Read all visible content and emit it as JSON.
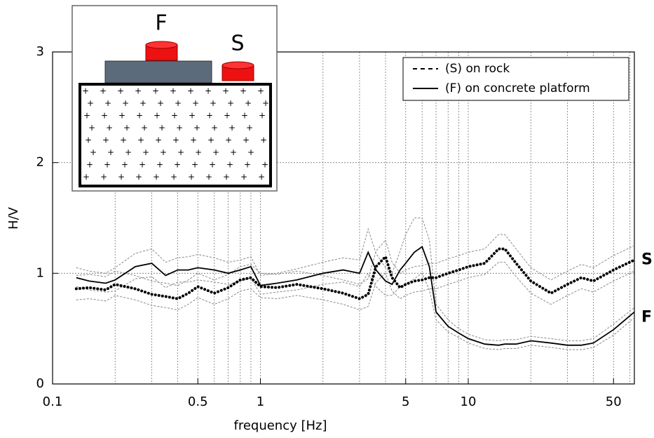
{
  "chart_data": {
    "type": "line",
    "xlabel": "frequency [Hz]",
    "ylabel": "H/V",
    "xscale": "log",
    "xlim": [
      0.1,
      63
    ],
    "ylim": [
      0,
      3
    ],
    "xticks": [
      0.1,
      0.5,
      1,
      5,
      10,
      50
    ],
    "xminor": [
      0.2,
      0.3,
      0.4,
      0.6,
      0.7,
      0.8,
      0.9,
      2,
      3,
      4,
      6,
      7,
      8,
      9,
      20,
      30,
      40,
      60
    ],
    "yticks": [
      0,
      1,
      2,
      3
    ],
    "grid": true,
    "legend": "upper right",
    "x": [
      0.13,
      0.15,
      0.18,
      0.2,
      0.25,
      0.3,
      0.35,
      0.4,
      0.45,
      0.5,
      0.6,
      0.7,
      0.8,
      0.9,
      1,
      1.2,
      1.5,
      2,
      2.5,
      3,
      3.3,
      3.6,
      4,
      4.3,
      4.7,
      5,
      5.5,
      6,
      6.5,
      7,
      8,
      9,
      10,
      12,
      14,
      15,
      17,
      20,
      25,
      30,
      35,
      40,
      50,
      63
    ],
    "series": [
      {
        "name": "(S) on rock",
        "label": "S",
        "style": "dotted",
        "color": "#000000",
        "band_color": "#888888",
        "values": [
          0.86,
          0.87,
          0.85,
          0.9,
          0.86,
          0.81,
          0.79,
          0.77,
          0.82,
          0.88,
          0.82,
          0.87,
          0.94,
          0.96,
          0.88,
          0.87,
          0.9,
          0.86,
          0.82,
          0.77,
          0.81,
          1.06,
          1.15,
          0.96,
          0.87,
          0.9,
          0.93,
          0.94,
          0.96,
          0.96,
          1.0,
          1.03,
          1.06,
          1.09,
          1.22,
          1.22,
          1.09,
          0.93,
          0.82,
          0.9,
          0.96,
          0.93,
          1.03,
          1.12
        ],
        "upper": [
          0.98,
          0.99,
          0.97,
          1.02,
          0.98,
          0.93,
          0.91,
          0.89,
          0.94,
          1.0,
          0.94,
          0.99,
          1.06,
          1.08,
          1.0,
          0.99,
          1.02,
          0.98,
          0.94,
          0.9,
          0.95,
          1.2,
          1.3,
          1.1,
          1.0,
          1.03,
          1.06,
          1.07,
          1.09,
          1.09,
          1.13,
          1.16,
          1.19,
          1.22,
          1.35,
          1.35,
          1.22,
          1.05,
          0.94,
          1.02,
          1.08,
          1.05,
          1.16,
          1.25
        ],
        "lower": [
          0.76,
          0.77,
          0.75,
          0.8,
          0.76,
          0.71,
          0.69,
          0.67,
          0.72,
          0.78,
          0.72,
          0.77,
          0.84,
          0.86,
          0.78,
          0.77,
          0.8,
          0.76,
          0.72,
          0.67,
          0.7,
          0.92,
          1.0,
          0.84,
          0.77,
          0.8,
          0.83,
          0.84,
          0.86,
          0.86,
          0.9,
          0.93,
          0.96,
          0.99,
          1.1,
          1.1,
          0.97,
          0.82,
          0.72,
          0.8,
          0.86,
          0.83,
          0.93,
          1.02
        ]
      },
      {
        "name": "(F) on concrete platform",
        "label": "F",
        "style": "solid",
        "color": "#000000",
        "band_color": "#888888",
        "values": [
          0.96,
          0.93,
          0.91,
          0.94,
          1.06,
          1.09,
          0.98,
          1.03,
          1.03,
          1.05,
          1.03,
          1.0,
          1.03,
          1.06,
          0.89,
          0.91,
          0.94,
          1.0,
          1.03,
          1.0,
          1.19,
          1.03,
          0.93,
          0.9,
          1.03,
          1.09,
          1.19,
          1.24,
          1.06,
          0.65,
          0.52,
          0.46,
          0.41,
          0.36,
          0.35,
          0.36,
          0.36,
          0.39,
          0.37,
          0.35,
          0.35,
          0.37,
          0.49,
          0.65
        ],
        "upper": [
          1.05,
          1.02,
          1.0,
          1.05,
          1.18,
          1.22,
          1.1,
          1.14,
          1.15,
          1.17,
          1.14,
          1.1,
          1.12,
          1.15,
          0.98,
          1.0,
          1.04,
          1.1,
          1.14,
          1.12,
          1.4,
          1.18,
          1.05,
          1.0,
          1.2,
          1.35,
          1.5,
          1.5,
          1.3,
          0.72,
          0.58,
          0.5,
          0.45,
          0.4,
          0.39,
          0.4,
          0.4,
          0.43,
          0.41,
          0.39,
          0.39,
          0.41,
          0.54,
          0.69
        ],
        "lower": [
          0.88,
          0.85,
          0.83,
          0.84,
          0.95,
          0.97,
          0.87,
          0.92,
          0.92,
          0.94,
          0.92,
          0.9,
          0.93,
          0.96,
          0.81,
          0.83,
          0.85,
          0.9,
          0.92,
          0.88,
          1.0,
          0.88,
          0.8,
          0.8,
          0.88,
          0.9,
          0.95,
          1.0,
          0.85,
          0.58,
          0.47,
          0.42,
          0.37,
          0.32,
          0.31,
          0.32,
          0.32,
          0.35,
          0.33,
          0.31,
          0.31,
          0.33,
          0.44,
          0.6
        ]
      }
    ],
    "inset": {
      "labels": [
        "F",
        "S"
      ]
    }
  }
}
